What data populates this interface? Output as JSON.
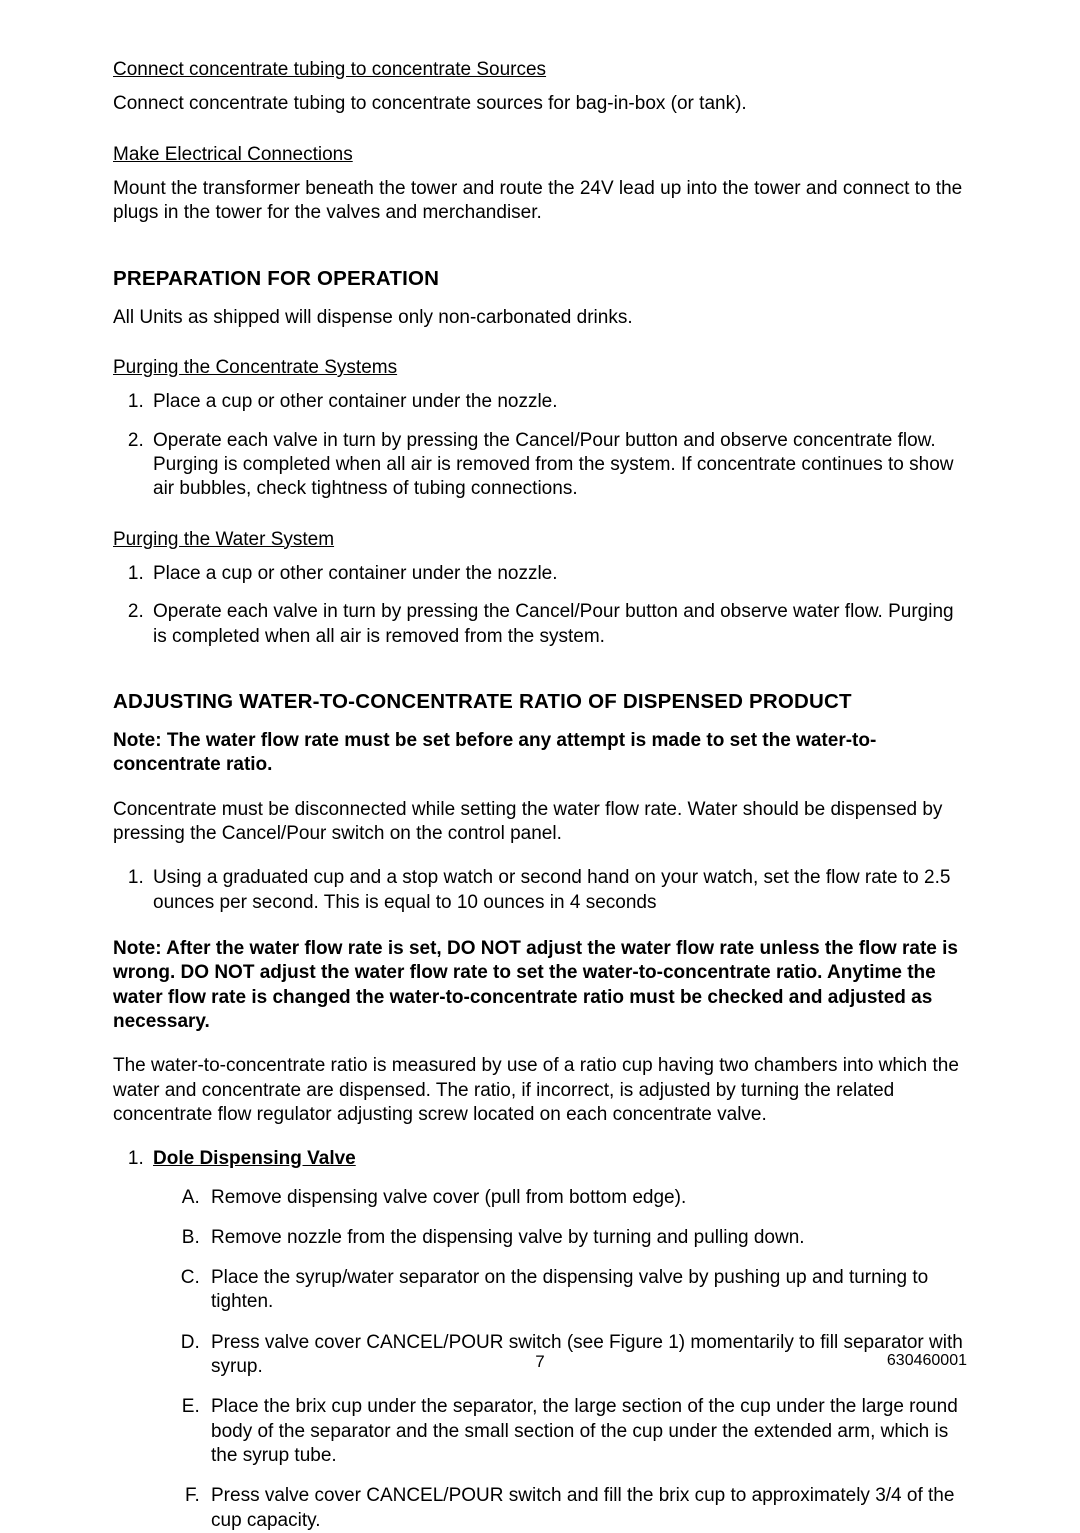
{
  "section1": {
    "sub1_title": "Connect concentrate tubing to concentrate Sources",
    "sub1_text": "Connect concentrate tubing to concentrate sources for bag-in-box (or tank).",
    "sub2_title": "Make Electrical Connections",
    "sub2_text": "Mount the transformer beneath the tower and route the 24V lead up into the tower and connect to the plugs in the tower for the valves and merchandiser."
  },
  "prep": {
    "heading": "PREPARATION FOR OPERATION",
    "intro": "All Units as shipped will dispense only non-carbonated drinks.",
    "purge_conc_title": "Purging the Concentrate Systems",
    "purge_conc_items": [
      "Place a cup or other container under the nozzle.",
      "Operate each valve in turn by pressing the Cancel/Pour button and observe concentrate flow. Purging is completed when all air is removed from the system. If concentrate continues to show air bubbles, check tightness of tubing connections."
    ],
    "purge_water_title": "Purging the Water System",
    "purge_water_items": [
      "Place a cup or other container under the nozzle.",
      "Operate each valve in turn by pressing the Cancel/Pour button and observe water flow. Purging is completed when all air is removed from the system."
    ]
  },
  "ratio": {
    "heading": "ADJUSTING WATER-TO-CONCENTRATE RATIO OF DISPENSED PRODUCT",
    "note1": "Note: The water flow rate must be set before any attempt is made to set the water-to-concentrate ratio.",
    "para1": "Concentrate must be disconnected while setting the water flow rate. Water should be dispensed by pressing the Cancel/Pour switch on the control panel.",
    "step1": "Using a graduated cup and a stop watch or second hand on your watch, set the flow rate to 2.5 ounces per second. This is equal to 10 ounces in 4 seconds",
    "note2": "Note: After the water flow rate is set, DO NOT adjust the water flow rate unless the flow rate is wrong. DO NOT adjust the water flow rate to set the water-to-concentrate ratio. Anytime the water flow rate is changed the water-to-concentrate ratio must be checked and adjusted as necessary.",
    "para2": "The water-to-concentrate ratio is measured by use of a ratio cup having two chambers into which the water and concentrate are dispensed. The ratio, if incorrect, is adjusted by turning the related concentrate flow regulator adjusting screw located on each concentrate valve.",
    "valve_title": "Dole Dispensing Valve",
    "valve_steps": [
      "Remove dispensing valve cover (pull from bottom edge).",
      "Remove nozzle from the dispensing valve by turning and pulling down.",
      "Place the syrup/water separator on the dispensing valve by pushing up and turning to tighten.",
      "Press valve cover CANCEL/POUR switch (see Figure 1) momentarily to fill separator with syrup.",
      "Place the brix cup under the separator, the large section of the cup under the large round body of the separator and the small section of the cup under the extended arm, which is the syrup tube.",
      "Press valve cover CANCEL/POUR switch and fill the brix cup to approximately 3/4 of the cup capacity."
    ]
  },
  "footer": {
    "page": "7",
    "docnum": "630460001"
  }
}
